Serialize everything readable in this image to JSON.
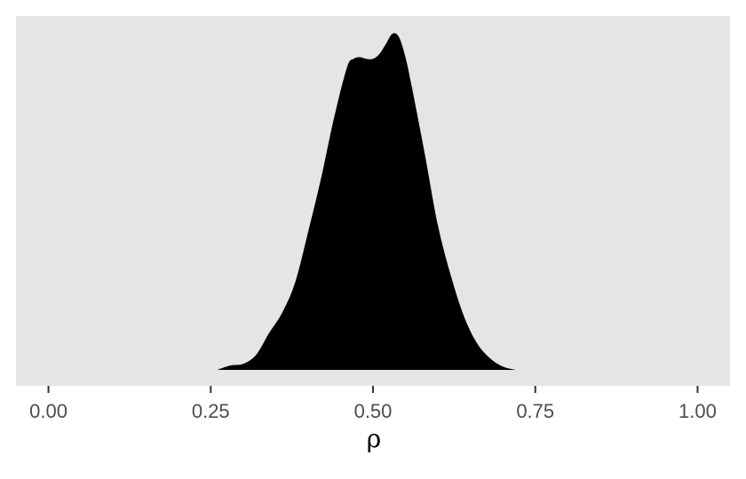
{
  "chart_data": {
    "type": "area",
    "title": "",
    "xlabel": "ρ",
    "ylabel": "",
    "xlim": [
      -0.05,
      1.05
    ],
    "ylim": [
      0,
      1
    ],
    "grid": false,
    "x_ticks": [
      {
        "value": 0.0,
        "label": "0.00"
      },
      {
        "value": 0.25,
        "label": "0.25"
      },
      {
        "value": 0.5,
        "label": "0.50"
      },
      {
        "value": 0.75,
        "label": "0.75"
      },
      {
        "value": 1.0,
        "label": "1.00"
      }
    ],
    "series": [
      {
        "x": [
          0.26,
          0.28,
          0.3,
          0.32,
          0.34,
          0.36,
          0.38,
          0.4,
          0.42,
          0.44,
          0.46,
          0.47,
          0.48,
          0.49,
          0.5,
          0.51,
          0.52,
          0.53,
          0.54,
          0.55,
          0.56,
          0.58,
          0.6,
          0.62,
          0.64,
          0.66,
          0.68,
          0.7,
          0.72
        ],
        "y": [
          0.0,
          0.013,
          0.018,
          0.045,
          0.11,
          0.17,
          0.26,
          0.41,
          0.57,
          0.75,
          0.9,
          0.925,
          0.93,
          0.925,
          0.925,
          0.94,
          0.97,
          1.0,
          0.99,
          0.93,
          0.84,
          0.64,
          0.43,
          0.28,
          0.16,
          0.08,
          0.035,
          0.01,
          0.0
        ]
      }
    ],
    "colors": {
      "fill": "#000000",
      "panel": "#e5e5e5",
      "tick_text": "#4d4d4d",
      "tick_mark": "#333333"
    }
  }
}
